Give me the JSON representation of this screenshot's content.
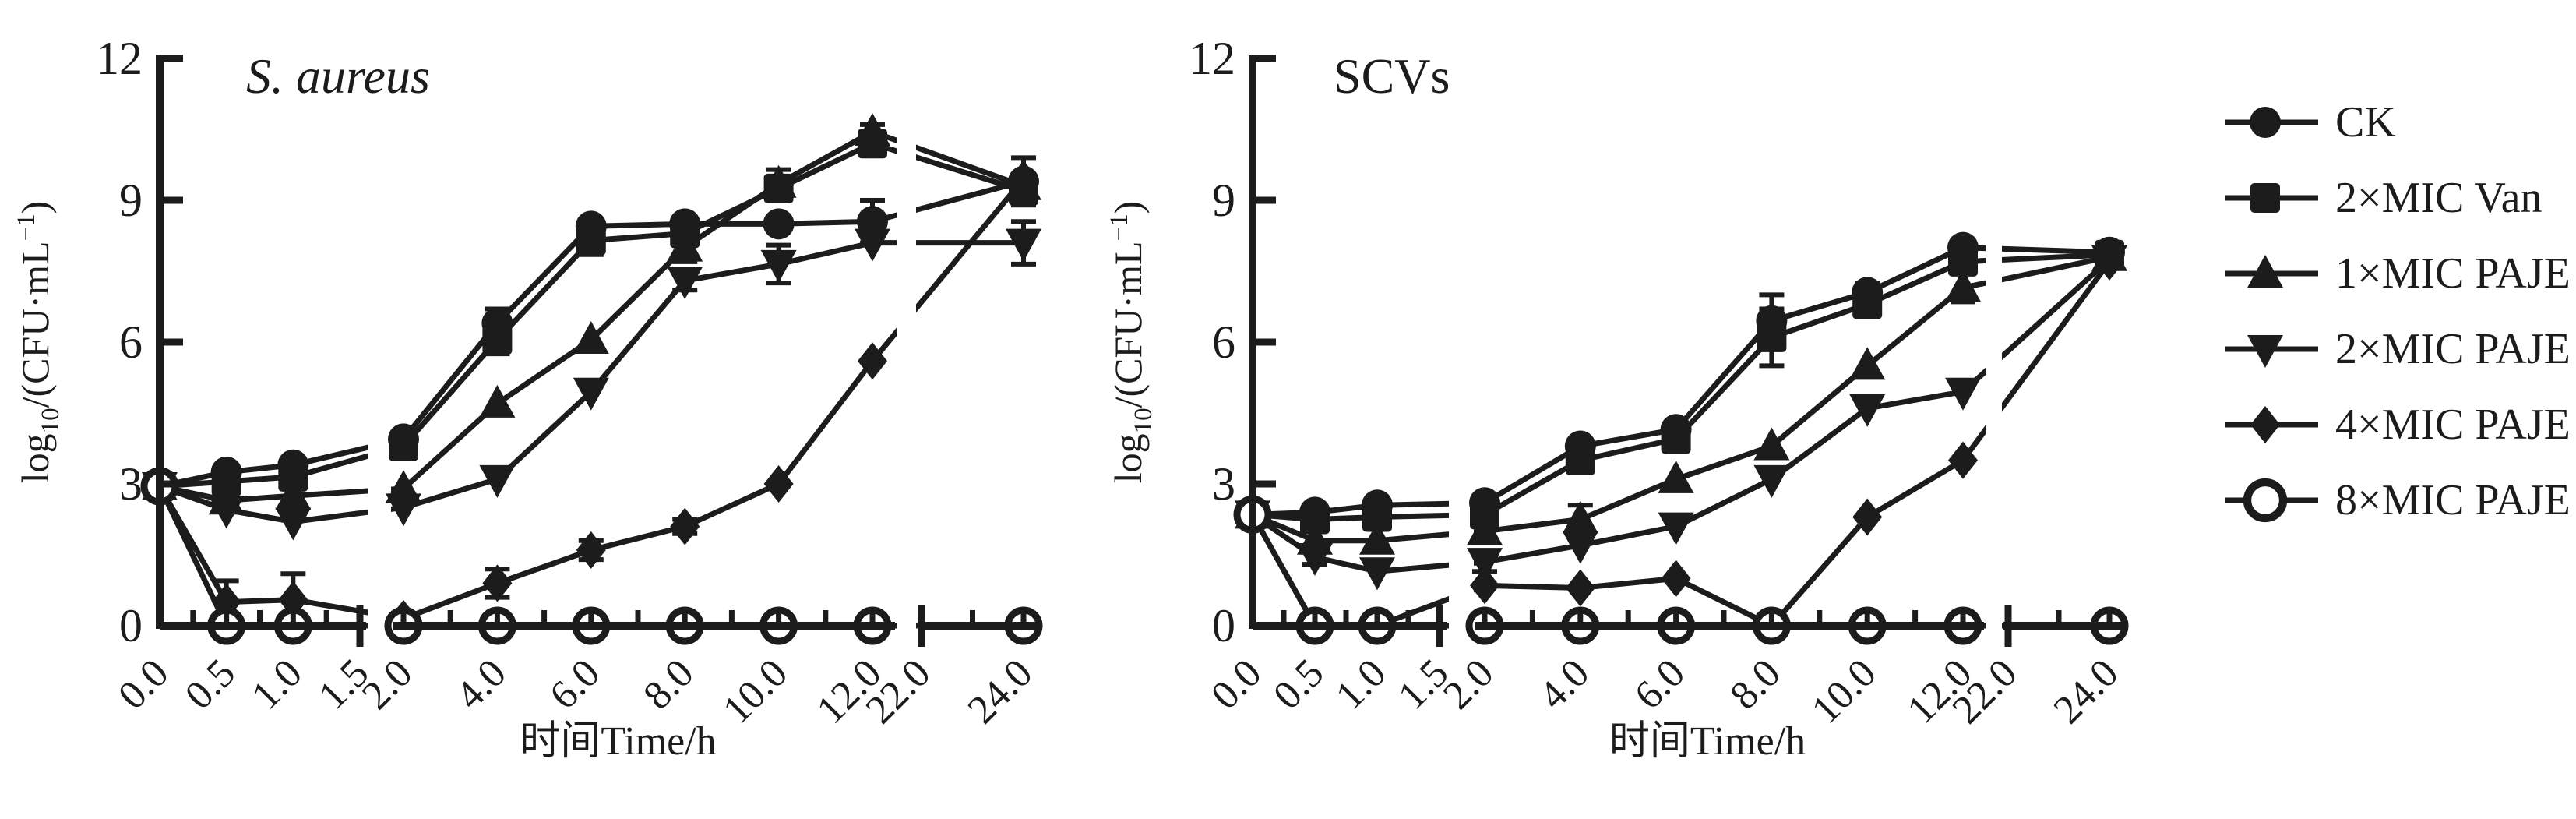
{
  "figure": {
    "background": "#ffffff",
    "ink": "#1c1c1c"
  },
  "legend": {
    "items": [
      {
        "label": "CK",
        "marker": "circle"
      },
      {
        "label": "2×MIC Van",
        "marker": "square"
      },
      {
        "label": "1×MIC PAJE",
        "marker": "triangle-up"
      },
      {
        "label": "2×MIC PAJE",
        "marker": "triangle-down"
      },
      {
        "label": "4×MIC PAJE",
        "marker": "diamond"
      },
      {
        "label": "8×MIC PAJE",
        "marker": "open-circle"
      }
    ]
  },
  "chart_data": [
    {
      "type": "line",
      "title": "S. aureus",
      "title_style": "italic",
      "xlabel": "时间Time/h",
      "ylabel": "log10/(CFU·mL−1)",
      "ylabel_parts": {
        "pre": "log",
        "sub": "10",
        "mid": "/(CFU·mL",
        "sup": "−1",
        "post": ")"
      },
      "ylim": [
        0,
        12
      ],
      "yticks": [
        0,
        3,
        6,
        9,
        12
      ],
      "x": [
        0,
        0.5,
        1,
        2,
        4,
        6,
        8,
        10,
        12,
        24
      ],
      "xtick_values": [
        0,
        0.5,
        1,
        1.5,
        2,
        4,
        6,
        8,
        10,
        12,
        22,
        24
      ],
      "xtick_labels": [
        "0.0",
        "0.5",
        "1.0",
        "1.5",
        "2.0",
        "4.0",
        "6.0",
        "8.0",
        "10.0",
        "12.0",
        "22.0",
        "24.0"
      ],
      "axis_breaks": [
        [
          1.5,
          2
        ],
        [
          12,
          22
        ]
      ],
      "minor_ticks": [
        0.25,
        0.75,
        1.25,
        3,
        5,
        7,
        9,
        11,
        23
      ],
      "legend_position": "right-of-figure",
      "grid": false,
      "series": [
        {
          "name": "CK",
          "marker": "circle",
          "values": [
            2.95,
            3.25,
            3.4,
            3.95,
            6.4,
            8.45,
            8.5,
            8.5,
            8.55,
            9.4
          ],
          "errors": [
            0,
            0,
            0,
            0,
            0.3,
            0.15,
            0.15,
            0.15,
            0.45,
            0.5
          ]
        },
        {
          "name": "2×MIC Van",
          "marker": "square",
          "values": [
            2.95,
            3.05,
            3.15,
            3.8,
            6.05,
            8.15,
            8.3,
            9.25,
            10.2,
            9.2
          ],
          "errors": [
            0,
            0,
            0,
            0,
            0.3,
            0.3,
            0,
            0.25,
            0.2,
            0.3
          ]
        },
        {
          "name": "1×MIC PAJE",
          "marker": "triangle-up",
          "values": [
            2.95,
            2.65,
            2.75,
            2.9,
            4.7,
            6.05,
            8.0,
            9.35,
            10.45,
            9.3
          ],
          "errors": [
            0,
            0,
            0,
            0,
            0,
            0,
            0.3,
            0.3,
            0.15,
            0.2
          ]
        },
        {
          "name": "2×MIC PAJE",
          "marker": "triangle-down",
          "values": [
            2.95,
            2.45,
            2.2,
            2.5,
            3.1,
            4.95,
            7.3,
            7.65,
            8.1,
            8.1
          ],
          "errors": [
            0,
            0,
            0,
            0,
            0,
            0,
            0.2,
            0.4,
            0,
            0.45
          ]
        },
        {
          "name": "4×MIC PAJE",
          "marker": "diamond",
          "values": [
            2.95,
            0.5,
            0.55,
            0.15,
            0.9,
            1.6,
            2.1,
            3.0,
            5.6,
            9.45
          ],
          "errors": [
            0,
            0.45,
            0.55,
            0,
            0.3,
            0.2,
            0.15,
            0,
            0,
            0
          ]
        },
        {
          "name": "8×MIC PAJE",
          "marker": "open-circle",
          "values": [
            2.95,
            0,
            0,
            0,
            0,
            0,
            0,
            0,
            0,
            0
          ],
          "errors": [
            0,
            0,
            0,
            0,
            0,
            0,
            0,
            0,
            0,
            0
          ]
        }
      ]
    },
    {
      "type": "line",
      "title": "SCVs",
      "title_style": "normal",
      "xlabel": "时间Time/h",
      "ylabel": "log10/(CFU·mL−1)",
      "ylabel_parts": {
        "pre": "log",
        "sub": "10",
        "mid": "/(CFU·mL",
        "sup": "−1",
        "post": ")"
      },
      "ylim": [
        0,
        12
      ],
      "yticks": [
        0,
        3,
        6,
        9,
        12
      ],
      "x": [
        0,
        0.5,
        1,
        2,
        4,
        6,
        8,
        10,
        12,
        24
      ],
      "xtick_values": [
        0,
        0.5,
        1,
        1.5,
        2,
        4,
        6,
        8,
        10,
        12,
        22,
        24
      ],
      "xtick_labels": [
        "0.0",
        "0.5",
        "1.0",
        "1.5",
        "2.0",
        "4.0",
        "6.0",
        "8.0",
        "10.0",
        "12.0",
        "22.0",
        "24.0"
      ],
      "axis_breaks": [
        [
          1.5,
          2
        ],
        [
          12,
          22
        ]
      ],
      "minor_ticks": [
        0.25,
        0.75,
        1.25,
        3,
        5,
        7,
        9,
        11,
        23
      ],
      "legend_position": "right-of-figure",
      "grid": false,
      "series": [
        {
          "name": "CK",
          "marker": "circle",
          "values": [
            2.35,
            2.4,
            2.55,
            2.6,
            3.8,
            4.15,
            6.45,
            7.05,
            8.0,
            7.9
          ],
          "errors": [
            0,
            0,
            0,
            0,
            0,
            0,
            0.55,
            0.2,
            0,
            0
          ]
        },
        {
          "name": "2×MIC Van",
          "marker": "square",
          "values": [
            2.35,
            2.25,
            2.3,
            2.35,
            3.5,
            3.95,
            6.1,
            6.8,
            7.7,
            7.85
          ],
          "errors": [
            0,
            0,
            0,
            0,
            0,
            0,
            0.6,
            0,
            0.25,
            0
          ]
        },
        {
          "name": "1×MIC PAJE",
          "marker": "triangle-up",
          "values": [
            2.35,
            1.8,
            1.8,
            2.0,
            2.25,
            3.1,
            3.8,
            5.5,
            7.15,
            7.8
          ],
          "errors": [
            0,
            0,
            0,
            0,
            0.3,
            0,
            0,
            0,
            0.3,
            0
          ]
        },
        {
          "name": "2×MIC PAJE",
          "marker": "triangle-down",
          "values": [
            2.35,
            1.45,
            1.15,
            1.35,
            1.7,
            2.1,
            3.1,
            4.6,
            4.95,
            7.75
          ],
          "errors": [
            0,
            0.15,
            0,
            0.2,
            0,
            0,
            0,
            0,
            0,
            0
          ]
        },
        {
          "name": "4×MIC PAJE",
          "marker": "diamond",
          "values": [
            2.35,
            0,
            0,
            0.85,
            0.8,
            1.0,
            0,
            2.3,
            3.5,
            7.7
          ],
          "errors": [
            0,
            0,
            0,
            0,
            0,
            0,
            0,
            0,
            0,
            0
          ]
        },
        {
          "name": "8×MIC PAJE",
          "marker": "open-circle",
          "values": [
            2.35,
            0,
            0,
            0,
            0,
            0,
            0,
            0,
            0,
            0
          ],
          "errors": [
            0,
            0,
            0,
            0,
            0,
            0,
            0,
            0,
            0,
            0
          ]
        }
      ]
    }
  ]
}
